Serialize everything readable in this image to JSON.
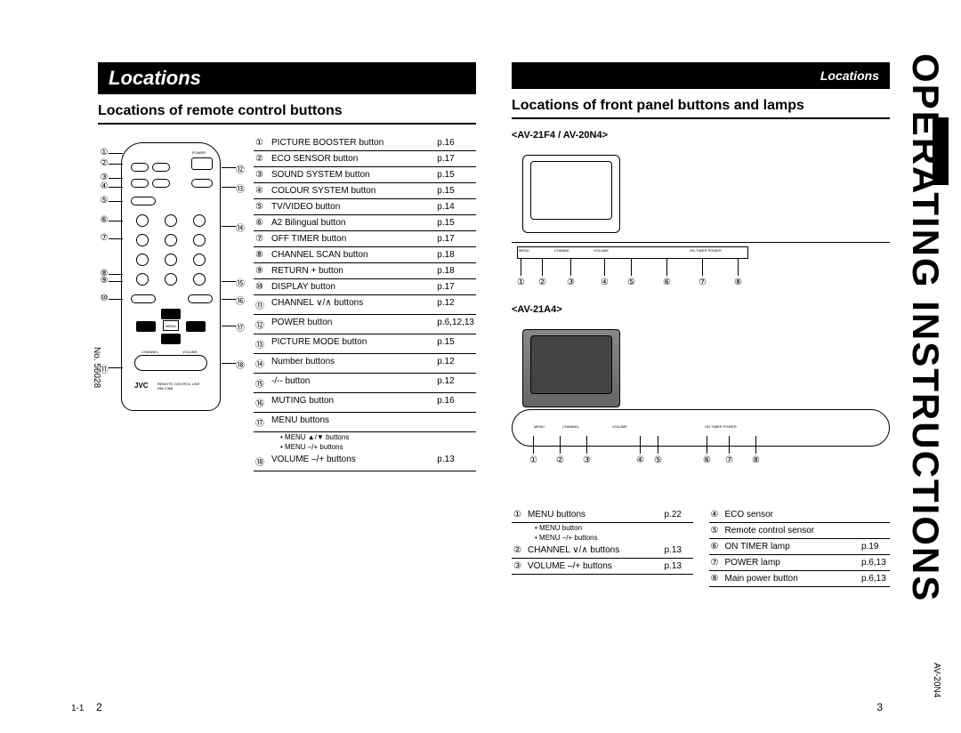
{
  "header": {
    "left_title": "Locations",
    "right_title": "Locations",
    "side_title": "OPERATING INSTRUCTIONS"
  },
  "left": {
    "subtitle": "Locations of remote control buttons",
    "callouts_left": [
      "①",
      "②",
      "③",
      "④",
      "⑤",
      "⑥",
      "⑦",
      "⑧",
      "⑨",
      "⑩",
      "⑪"
    ],
    "callouts_right": [
      "⑫",
      "⑬",
      "⑭",
      "⑮",
      "⑯",
      "⑰",
      "⑱"
    ],
    "items": [
      {
        "n": "①",
        "label": "PICTURE BOOSTER button",
        "pg": "p.16"
      },
      {
        "n": "②",
        "label": "ECO SENSOR button",
        "pg": "p.17"
      },
      {
        "n": "③",
        "label": "SOUND SYSTEM button",
        "pg": "p.15"
      },
      {
        "n": "④",
        "label": "COLOUR SYSTEM button",
        "pg": "p.15"
      },
      {
        "n": "⑤",
        "label": "TV/VIDEO button",
        "pg": "p.14"
      },
      {
        "n": "⑥",
        "label": "A2 Bilingual button",
        "pg": "p.15"
      },
      {
        "n": "⑦",
        "label": "OFF TIMER button",
        "pg": "p.17"
      },
      {
        "n": "⑧",
        "label": "CHANNEL SCAN button",
        "pg": "p.18"
      },
      {
        "n": "⑨",
        "label": "RETURN + button",
        "pg": "p.18"
      },
      {
        "n": "⑩",
        "label": "DISPLAY button",
        "pg": "p.17"
      },
      {
        "n": "⑪",
        "label": "CHANNEL ∨/∧ buttons",
        "pg": "p.12"
      },
      {
        "n": "⑫",
        "label": "POWER button",
        "pg": "p.6,12,13"
      },
      {
        "n": "⑬",
        "label": "PICTURE MODE button",
        "pg": "p.15"
      },
      {
        "n": "⑭",
        "label": "Number buttons",
        "pg": "p.12"
      },
      {
        "n": "⑮",
        "label": "-/-- button",
        "pg": "p.12"
      },
      {
        "n": "⑯",
        "label": "MUTING button",
        "pg": "p.16"
      },
      {
        "n": "⑰",
        "label": "MENU buttons",
        "pg": "",
        "subs": [
          "• MENU ▲/▼ buttons",
          "• MENU –/+ buttons"
        ]
      },
      {
        "n": "⑱",
        "label": "VOLUME –/+ buttons",
        "pg": "p.13"
      }
    ]
  },
  "right": {
    "subtitle": "Locations of front panel buttons and lamps",
    "model1": "<AV-21F4 / AV-20N4>",
    "model2": "<AV-21A4>",
    "panel_callouts": [
      "①",
      "②",
      "③",
      "④",
      "⑤",
      "⑥",
      "⑦",
      "⑧"
    ],
    "list_left": [
      {
        "n": "①",
        "label": "MENU buttons",
        "pg": "p.22",
        "subs": [
          "• MENU button",
          "• MENU –/+ buttons"
        ]
      },
      {
        "n": "②",
        "label": "CHANNEL ∨/∧ buttons",
        "pg": "p.13"
      },
      {
        "n": "③",
        "label": "VOLUME –/+ buttons",
        "pg": "p.13"
      }
    ],
    "list_right": [
      {
        "n": "④",
        "label": "ECO sensor",
        "pg": ""
      },
      {
        "n": "⑤",
        "label": "Remote control sensor",
        "pg": ""
      },
      {
        "n": "⑥",
        "label": "ON TIMER lamp",
        "pg": "p.19"
      },
      {
        "n": "⑦",
        "label": "POWER lamp",
        "pg": "p.6,13"
      },
      {
        "n": "⑧",
        "label": "Main power button",
        "pg": "p.6,13"
      }
    ]
  },
  "footer": {
    "no": "No. 56028",
    "model": "AV-20N4",
    "page_left_small": "1-1",
    "page_left": "2",
    "page_right": "3"
  }
}
